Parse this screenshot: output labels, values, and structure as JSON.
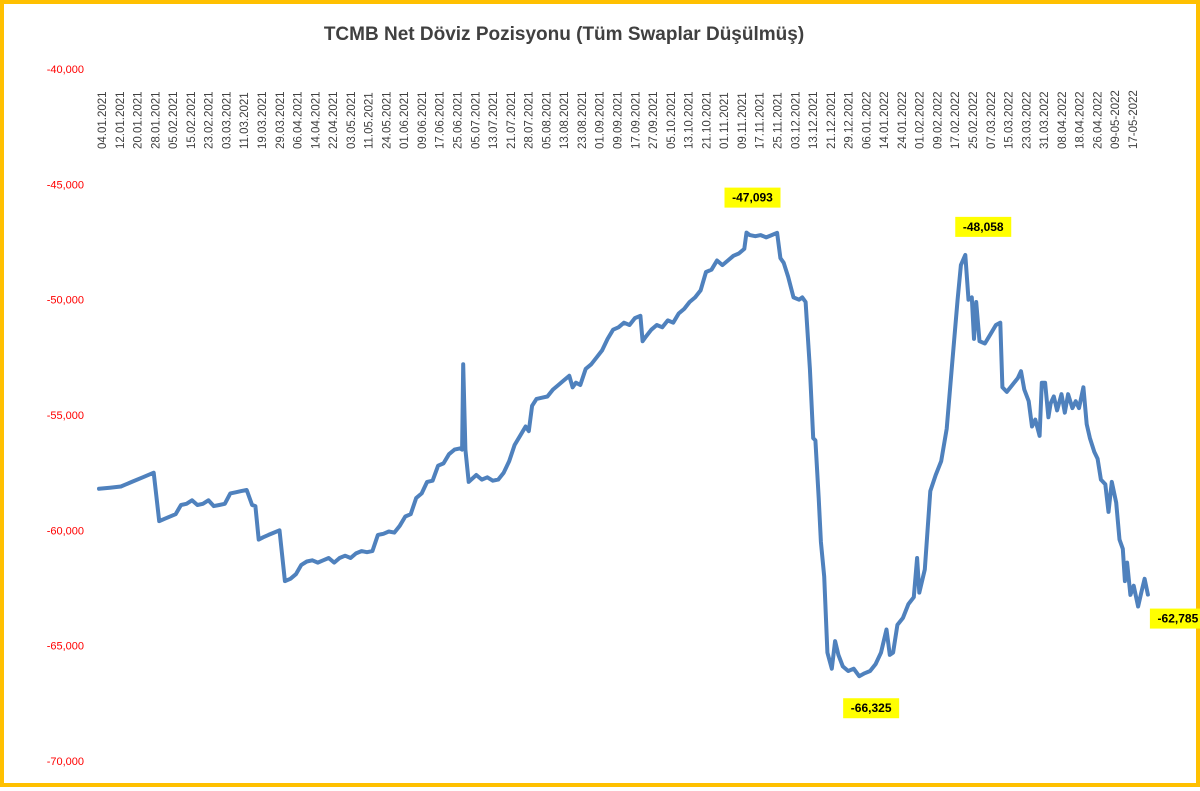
{
  "chart_data": {
    "type": "line",
    "title": "TCMB Net Döviz Pozisyonu (Tüm Swaplar Düşülmüş)",
    "xlabel": "",
    "ylabel": "",
    "ylim": [
      -70000,
      -40000
    ],
    "grid": false,
    "legend": "none",
    "y_ticks": [
      "-40,000",
      "-45,000",
      "-50,000",
      "-55,000",
      "-60,000",
      "-65,000",
      "-70,000"
    ],
    "y_tick_values": [
      -40000,
      -45000,
      -50000,
      -55000,
      -60000,
      -65000,
      -70000
    ],
    "x_tick_labels": [
      "04.01.2021",
      "12.01.2021",
      "20.01.2021",
      "28.01.2021",
      "05.02.2021",
      "15.02.2021",
      "23.02.2021",
      "03.03.2021",
      "11.03.2021",
      "19.03.2021",
      "29.03.2021",
      "06.04.2021",
      "14.04.2021",
      "22.04.2021",
      "03.05.2021",
      "11.05.2021",
      "24.05.2021",
      "01.06.2021",
      "09.06.2021",
      "17.06.2021",
      "25.06.2021",
      "05.07.2021",
      "13.07.2021",
      "21.07.2021",
      "28.07.2021",
      "05.08.2021",
      "13.08.2021",
      "23.08.2021",
      "01.09.2021",
      "09.09.2021",
      "17.09.2021",
      "27.09.2021",
      "05.10.2021",
      "13.10.2021",
      "21.10.2021",
      "01.11.2021",
      "09.11.2021",
      "17.11.2021",
      "25.11.2021",
      "03.12.2021",
      "13.12.2021",
      "21.12.2021",
      "29.12.2021",
      "06.01.2022",
      "14.01.2022",
      "24.01.2022",
      "01.02.2022",
      "09.02.2022",
      "17.02.2022",
      "25.02.2022",
      "07.03.2022",
      "15.03.2022",
      "23.03.2022",
      "31.03.2022",
      "08.04.2022",
      "18.04.2022",
      "26.04.2022",
      "09-05-2022",
      "17-05-2022"
    ],
    "series": [
      {
        "color": "#4f81bd",
        "points": [
          [
            0,
            -58200
          ],
          [
            1,
            -58150
          ],
          [
            2,
            -58100
          ],
          [
            3,
            -57900
          ],
          [
            4,
            -57700
          ],
          [
            5,
            -57500
          ],
          [
            5.5,
            -59600
          ],
          [
            6,
            -59500
          ],
          [
            7,
            -59300
          ],
          [
            7.5,
            -58900
          ],
          [
            8,
            -58850
          ],
          [
            8.5,
            -58700
          ],
          [
            9,
            -58900
          ],
          [
            9.5,
            -58850
          ],
          [
            10,
            -58700
          ],
          [
            10.5,
            -58950
          ],
          [
            11,
            -58900
          ],
          [
            11.5,
            -58850
          ],
          [
            12,
            -58400
          ],
          [
            12.5,
            -58350
          ],
          [
            13,
            -58300
          ],
          [
            13.5,
            -58250
          ],
          [
            14,
            -58900
          ],
          [
            14.3,
            -58950
          ],
          [
            14.6,
            -60400
          ],
          [
            15,
            -60300
          ],
          [
            15.5,
            -60200
          ],
          [
            16,
            -60100
          ],
          [
            16.5,
            -60000
          ],
          [
            17,
            -62200
          ],
          [
            17.5,
            -62100
          ],
          [
            18,
            -61900
          ],
          [
            18.5,
            -61500
          ],
          [
            19,
            -61350
          ],
          [
            19.5,
            -61300
          ],
          [
            20,
            -61400
          ],
          [
            20.5,
            -61300
          ],
          [
            21,
            -61200
          ],
          [
            21.5,
            -61400
          ],
          [
            22,
            -61200
          ],
          [
            22.5,
            -61100
          ],
          [
            23,
            -61200
          ],
          [
            23.5,
            -61000
          ],
          [
            24,
            -60900
          ],
          [
            24.5,
            -60950
          ],
          [
            25,
            -60900
          ],
          [
            25.5,
            -60200
          ],
          [
            26,
            -60150
          ],
          [
            26.5,
            -60050
          ],
          [
            27,
            -60100
          ],
          [
            27.5,
            -59800
          ],
          [
            28,
            -59400
          ],
          [
            28.5,
            -59300
          ],
          [
            29,
            -58600
          ],
          [
            29.5,
            -58400
          ],
          [
            30,
            -57900
          ],
          [
            30.5,
            -57850
          ],
          [
            31,
            -57200
          ],
          [
            31.5,
            -57100
          ],
          [
            32,
            -56700
          ],
          [
            32.5,
            -56500
          ],
          [
            33,
            -56450
          ],
          [
            33.2,
            -56500
          ],
          [
            33.3,
            -52800
          ],
          [
            33.5,
            -56500
          ],
          [
            33.8,
            -57900
          ],
          [
            34.5,
            -57600
          ],
          [
            35,
            -57800
          ],
          [
            35.5,
            -57700
          ],
          [
            36,
            -57850
          ],
          [
            36.5,
            -57800
          ],
          [
            37,
            -57500
          ],
          [
            37.5,
            -57000
          ],
          [
            38,
            -56300
          ],
          [
            38.5,
            -55900
          ],
          [
            39,
            -55500
          ],
          [
            39.3,
            -55700
          ],
          [
            39.6,
            -54600
          ],
          [
            40,
            -54300
          ],
          [
            40.5,
            -54250
          ],
          [
            41,
            -54200
          ],
          [
            41.5,
            -53900
          ],
          [
            42,
            -53700
          ],
          [
            42.5,
            -53500
          ],
          [
            43,
            -53300
          ],
          [
            43.3,
            -53800
          ],
          [
            43.6,
            -53600
          ],
          [
            44,
            -53700
          ],
          [
            44.5,
            -53000
          ],
          [
            45,
            -52800
          ],
          [
            45.5,
            -52500
          ],
          [
            46,
            -52200
          ],
          [
            46.5,
            -51700
          ],
          [
            47,
            -51300
          ],
          [
            47.5,
            -51200
          ],
          [
            48,
            -51000
          ],
          [
            48.5,
            -51100
          ],
          [
            49,
            -50800
          ],
          [
            49.5,
            -50700
          ],
          [
            49.7,
            -51800
          ],
          [
            50,
            -51600
          ],
          [
            50.5,
            -51300
          ],
          [
            51,
            -51100
          ],
          [
            51.5,
            -51200
          ],
          [
            52,
            -50900
          ],
          [
            52.5,
            -51000
          ],
          [
            53,
            -50600
          ],
          [
            53.5,
            -50400
          ],
          [
            54,
            -50100
          ],
          [
            54.5,
            -49900
          ],
          [
            55,
            -49600
          ],
          [
            55.5,
            -48800
          ],
          [
            56,
            -48700
          ],
          [
            56.5,
            -48300
          ],
          [
            57,
            -48500
          ],
          [
            57.5,
            -48300
          ],
          [
            58,
            -48100
          ],
          [
            58.5,
            -48000
          ],
          [
            59,
            -47800
          ],
          [
            59.2,
            -47093
          ],
          [
            59.5,
            -47200
          ],
          [
            60,
            -47250
          ],
          [
            60.5,
            -47200
          ],
          [
            61,
            -47300
          ],
          [
            61.5,
            -47200
          ],
          [
            62,
            -47100
          ],
          [
            62.3,
            -48200
          ],
          [
            62.6,
            -48400
          ],
          [
            63,
            -49000
          ],
          [
            63.5,
            -49900
          ],
          [
            64,
            -50000
          ],
          [
            64.3,
            -49900
          ],
          [
            64.6,
            -50100
          ],
          [
            65,
            -53000
          ],
          [
            65.3,
            -56000
          ],
          [
            65.5,
            -56100
          ],
          [
            65.8,
            -58600
          ],
          [
            66,
            -60500
          ],
          [
            66.3,
            -62000
          ],
          [
            66.6,
            -65300
          ],
          [
            67,
            -66000
          ],
          [
            67.3,
            -64800
          ],
          [
            67.6,
            -65400
          ],
          [
            68,
            -65900
          ],
          [
            68.5,
            -66100
          ],
          [
            69,
            -66000
          ],
          [
            69.5,
            -66325
          ],
          [
            70,
            -66200
          ],
          [
            70.5,
            -66100
          ],
          [
            71,
            -65800
          ],
          [
            71.5,
            -65300
          ],
          [
            72,
            -64300
          ],
          [
            72.3,
            -65400
          ],
          [
            72.6,
            -65300
          ],
          [
            73,
            -64100
          ],
          [
            73.5,
            -63800
          ],
          [
            74,
            -63200
          ],
          [
            74.5,
            -62900
          ],
          [
            74.8,
            -61200
          ],
          [
            75,
            -62700
          ],
          [
            75.5,
            -61700
          ],
          [
            76,
            -58300
          ],
          [
            76.5,
            -57600
          ],
          [
            77,
            -57000
          ],
          [
            77.5,
            -55600
          ],
          [
            78,
            -52800
          ],
          [
            78.5,
            -50000
          ],
          [
            78.8,
            -48500
          ],
          [
            79.2,
            -48058
          ],
          [
            79.5,
            -50000
          ],
          [
            79.8,
            -49900
          ],
          [
            80,
            -51700
          ],
          [
            80.2,
            -50100
          ],
          [
            80.5,
            -51800
          ],
          [
            81,
            -51900
          ],
          [
            81.5,
            -51500
          ],
          [
            82,
            -51100
          ],
          [
            82.4,
            -51000
          ],
          [
            82.6,
            -53800
          ],
          [
            83,
            -54000
          ],
          [
            83.5,
            -53700
          ],
          [
            84,
            -53400
          ],
          [
            84.3,
            -53100
          ],
          [
            84.6,
            -53900
          ],
          [
            85,
            -54400
          ],
          [
            85.3,
            -55500
          ],
          [
            85.6,
            -55200
          ],
          [
            86,
            -55900
          ],
          [
            86.2,
            -53600
          ],
          [
            86.5,
            -53600
          ],
          [
            86.8,
            -55100
          ],
          [
            87,
            -54500
          ],
          [
            87.3,
            -54200
          ],
          [
            87.6,
            -54800
          ],
          [
            88,
            -54100
          ],
          [
            88.3,
            -54900
          ],
          [
            88.6,
            -54100
          ],
          [
            89,
            -54700
          ],
          [
            89.3,
            -54400
          ],
          [
            89.6,
            -54700
          ],
          [
            90,
            -53800
          ],
          [
            90.3,
            -55400
          ],
          [
            90.6,
            -56000
          ],
          [
            91,
            -56600
          ],
          [
            91.3,
            -56900
          ],
          [
            91.6,
            -57800
          ],
          [
            92,
            -58000
          ],
          [
            92.3,
            -59200
          ],
          [
            92.6,
            -57900
          ],
          [
            93,
            -58800
          ],
          [
            93.3,
            -60400
          ],
          [
            93.6,
            -60800
          ],
          [
            93.8,
            -62200
          ],
          [
            94,
            -61400
          ],
          [
            94.3,
            -62800
          ],
          [
            94.6,
            -62400
          ],
          [
            95,
            -63300
          ],
          [
            95.3,
            -62700
          ],
          [
            95.6,
            -62100
          ],
          [
            95.9,
            -62785
          ]
        ]
      }
    ],
    "x_range": [
      0,
      96
    ],
    "annotations": [
      {
        "label": "-47,093",
        "x": 59.2,
        "y": -47093,
        "pos": "above"
      },
      {
        "label": "-48,058",
        "x": 79.2,
        "y": -48058,
        "pos": "above-right"
      },
      {
        "label": "-66,325",
        "x": 69.5,
        "y": -66325,
        "pos": "below"
      },
      {
        "label": "-62,785",
        "x": 95.9,
        "y": -62785,
        "pos": "below-right"
      }
    ]
  }
}
